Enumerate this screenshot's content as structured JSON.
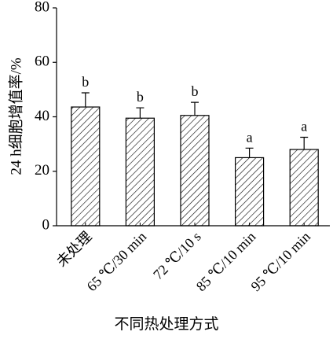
{
  "chart_data": {
    "type": "bar",
    "categories": [
      "未处理",
      "65 ℃/30 min",
      "72 ℃/10 s",
      "85 ℃/10 min",
      "95 ℃/10 min"
    ],
    "values": [
      43.6,
      39.5,
      40.5,
      25.0,
      28.0
    ],
    "errors": [
      5.2,
      3.8,
      4.8,
      3.5,
      4.5
    ],
    "sig_labels": [
      "b",
      "b",
      "b",
      "a",
      "a"
    ],
    "color": "#000000",
    "ylabel": "24 h细胞增值率/%",
    "xlabel": "不同热处理方式",
    "ylim": [
      0,
      80
    ],
    "yticks": [
      0,
      20,
      40,
      60,
      80
    ]
  }
}
